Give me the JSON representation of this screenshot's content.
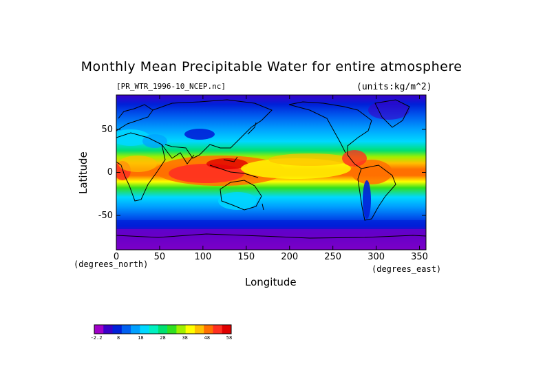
{
  "chart_data": {
    "type": "heatmap",
    "title": "Monthly Mean Precipitable Water for entire atmosphere",
    "file_label": "[PR_WTR_1996-10_NCEP.nc]",
    "units_label": "(units:kg/m^2)",
    "xlabel": "Longitude",
    "ylabel": "Latitude",
    "x_unit_label": "(degrees_east)",
    "y_unit_label": "(degrees_north)",
    "xlim": [
      0,
      357.5
    ],
    "ylim": [
      -90,
      90
    ],
    "x_ticks": [
      0,
      50,
      100,
      150,
      200,
      250,
      300,
      350
    ],
    "y_ticks": [
      50,
      0,
      -50
    ],
    "colorbar": {
      "colors": [
        "#a000c8",
        "#3a00c8",
        "#0020d8",
        "#0060f0",
        "#00a0ff",
        "#00d8ff",
        "#00f0c0",
        "#00e070",
        "#30e020",
        "#a0f000",
        "#ffff00",
        "#ffc000",
        "#ff7000",
        "#ff3020",
        "#e00000"
      ],
      "tick_labels": [
        "-2.2",
        "8",
        "18",
        "28",
        "38",
        "48",
        "58"
      ]
    },
    "approx_zonal_mean_field": [
      {
        "lat": 90,
        "value": 2
      },
      {
        "lat": 70,
        "value": 6
      },
      {
        "lat": 50,
        "value": 14
      },
      {
        "lat": 30,
        "value": 28
      },
      {
        "lat": 10,
        "value": 48
      },
      {
        "lat": 0,
        "value": 50
      },
      {
        "lat": -10,
        "value": 40
      },
      {
        "lat": -30,
        "value": 24
      },
      {
        "lat": -50,
        "value": 12
      },
      {
        "lat": -70,
        "value": 4
      },
      {
        "lat": -90,
        "value": 1
      }
    ]
  }
}
